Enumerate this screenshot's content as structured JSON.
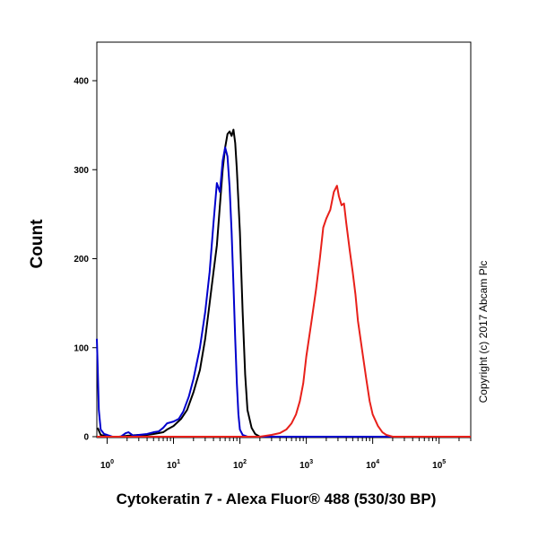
{
  "chart_data": {
    "type": "line",
    "title": "",
    "xlabel": "Cytokeratin 7 - Alexa Fluor® 488 (530/30 BP)",
    "ylabel": "Count",
    "x_scale": "log",
    "xlim": [
      0.7,
      300000
    ],
    "ylim": [
      0,
      400
    ],
    "x_ticks": [
      {
        "base": "10",
        "exp": "0",
        "value": 1
      },
      {
        "base": "10",
        "exp": "1",
        "value": 10
      },
      {
        "base": "10",
        "exp": "2",
        "value": 100
      },
      {
        "base": "10",
        "exp": "3",
        "value": 1000
      },
      {
        "base": "10",
        "exp": "4",
        "value": 10000
      },
      {
        "base": "10",
        "exp": "5",
        "value": 100000
      }
    ],
    "y_ticks": [
      "0",
      "100",
      "200",
      "300",
      "400"
    ],
    "y_tick_values": [
      0,
      100,
      200,
      300,
      400
    ],
    "annotation": "Copyright (c) 2017 Abcam Plc",
    "grid": false,
    "series": [
      {
        "color": "#000000",
        "points": [
          [
            0.72,
            10
          ],
          [
            0.8,
            2
          ],
          [
            1,
            0
          ],
          [
            1.5,
            0
          ],
          [
            2,
            1
          ],
          [
            3,
            2
          ],
          [
            4,
            2
          ],
          [
            5,
            3
          ],
          [
            6,
            4
          ],
          [
            7,
            5
          ],
          [
            8,
            8
          ],
          [
            10,
            12
          ],
          [
            13,
            20
          ],
          [
            16,
            30
          ],
          [
            20,
            50
          ],
          [
            25,
            75
          ],
          [
            30,
            110
          ],
          [
            35,
            150
          ],
          [
            40,
            185
          ],
          [
            45,
            215
          ],
          [
            50,
            260
          ],
          [
            55,
            300
          ],
          [
            60,
            325
          ],
          [
            65,
            340
          ],
          [
            70,
            343
          ],
          [
            75,
            338
          ],
          [
            80,
            345
          ],
          [
            85,
            330
          ],
          [
            90,
            300
          ],
          [
            100,
            230
          ],
          [
            110,
            140
          ],
          [
            120,
            70
          ],
          [
            130,
            30
          ],
          [
            150,
            10
          ],
          [
            170,
            3
          ],
          [
            200,
            0
          ],
          [
            300000,
            0
          ]
        ]
      },
      {
        "color": "#0000cc",
        "points": [
          [
            0.7,
            110
          ],
          [
            0.72,
            80
          ],
          [
            0.75,
            30
          ],
          [
            0.8,
            8
          ],
          [
            0.9,
            3
          ],
          [
            1,
            2
          ],
          [
            1.2,
            0
          ],
          [
            1.6,
            0
          ],
          [
            1.9,
            4
          ],
          [
            2.1,
            5
          ],
          [
            2.5,
            1
          ],
          [
            3,
            2
          ],
          [
            4,
            3
          ],
          [
            5,
            5
          ],
          [
            6,
            6
          ],
          [
            7,
            10
          ],
          [
            8,
            15
          ],
          [
            10,
            17
          ],
          [
            12,
            20
          ],
          [
            14,
            28
          ],
          [
            17,
            45
          ],
          [
            20,
            65
          ],
          [
            25,
            100
          ],
          [
            30,
            140
          ],
          [
            35,
            185
          ],
          [
            40,
            240
          ],
          [
            45,
            285
          ],
          [
            50,
            275
          ],
          [
            55,
            310
          ],
          [
            60,
            325
          ],
          [
            65,
            315
          ],
          [
            70,
            280
          ],
          [
            75,
            230
          ],
          [
            80,
            170
          ],
          [
            85,
            110
          ],
          [
            90,
            60
          ],
          [
            95,
            25
          ],
          [
            100,
            8
          ],
          [
            110,
            2
          ],
          [
            130,
            0
          ],
          [
            300000,
            0
          ]
        ]
      },
      {
        "color": "#e8201a",
        "points": [
          [
            0.7,
            0
          ],
          [
            200,
            0
          ],
          [
            300,
            2
          ],
          [
            400,
            4
          ],
          [
            500,
            8
          ],
          [
            600,
            15
          ],
          [
            700,
            25
          ],
          [
            800,
            40
          ],
          [
            900,
            60
          ],
          [
            1000,
            90
          ],
          [
            1200,
            130
          ],
          [
            1400,
            165
          ],
          [
            1600,
            200
          ],
          [
            1800,
            235
          ],
          [
            2000,
            245
          ],
          [
            2300,
            255
          ],
          [
            2600,
            275
          ],
          [
            2900,
            282
          ],
          [
            3100,
            270
          ],
          [
            3400,
            260
          ],
          [
            3700,
            262
          ],
          [
            4000,
            240
          ],
          [
            4500,
            210
          ],
          [
            5000,
            185
          ],
          [
            5500,
            160
          ],
          [
            6000,
            130
          ],
          [
            7000,
            95
          ],
          [
            8000,
            65
          ],
          [
            9000,
            40
          ],
          [
            10000,
            25
          ],
          [
            12000,
            12
          ],
          [
            14000,
            5
          ],
          [
            16000,
            2
          ],
          [
            20000,
            0
          ],
          [
            300000,
            0
          ]
        ]
      }
    ]
  }
}
